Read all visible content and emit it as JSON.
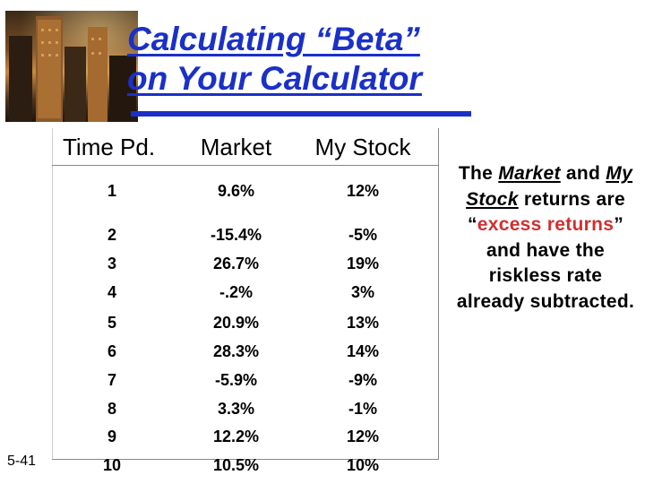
{
  "title": {
    "line1": "Calculating “Beta”",
    "line2": "on Your Calculator"
  },
  "table": {
    "headers": [
      "Time Pd.",
      "Market",
      "My Stock"
    ],
    "rows": [
      [
        "1",
        "9.6%",
        "12%"
      ],
      [
        "2",
        "-15.4%",
        "-5%"
      ],
      [
        "3",
        "26.7%",
        "19%"
      ],
      [
        "4",
        "-.2%",
        "3%"
      ],
      [
        "5",
        "20.9%",
        "13%"
      ],
      [
        "6",
        "28.3%",
        "14%"
      ],
      [
        "7",
        "-5.9%",
        "-9%"
      ],
      [
        "8",
        "3.3%",
        "-1%"
      ],
      [
        "9",
        "12.2%",
        "12%"
      ],
      [
        "10",
        "10.5%",
        "10%"
      ]
    ]
  },
  "note": {
    "p1": "The ",
    "market": "Market",
    "p2": " and ",
    "my_stock": "My Stock",
    "p3": " returns are “",
    "excess": "excess returns",
    "p4": "” and have the riskless rate already subtracted."
  },
  "slide_number": "5-41",
  "colors": {
    "title": "#1a30c8",
    "accent": "#d03030"
  },
  "icons": {
    "photo": "city-skyscrapers-image"
  }
}
